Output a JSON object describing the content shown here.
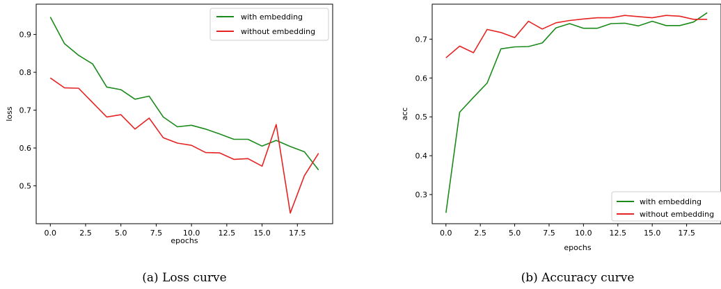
{
  "colors": {
    "with_embedding": "#1a8a1a",
    "without_embedding": "#e62222"
  },
  "chart_data": [
    {
      "type": "line",
      "caption": "(a)  Loss curve",
      "xlabel": "epochs",
      "ylabel": "loss",
      "xlim": [
        -1.0,
        20.0
      ],
      "ylim": [
        0.4,
        0.98
      ],
      "xticks": [
        0.0,
        2.5,
        5.0,
        7.5,
        10.0,
        12.5,
        15.0,
        17.5
      ],
      "yticks": [
        0.5,
        0.6,
        0.7,
        0.8,
        0.9
      ],
      "legend_position": "top-right",
      "grid": false,
      "x": [
        0,
        1,
        2,
        3,
        4,
        5,
        6,
        7,
        8,
        9,
        10,
        11,
        12,
        13,
        14,
        15,
        16,
        17,
        18,
        19
      ],
      "series": [
        {
          "name": "with embedding",
          "color": "#1a8a1a",
          "values": [
            0.946,
            0.876,
            0.845,
            0.822,
            0.761,
            0.754,
            0.729,
            0.737,
            0.682,
            0.656,
            0.66,
            0.65,
            0.637,
            0.623,
            0.623,
            0.605,
            0.62,
            0.604,
            0.59,
            0.542
          ]
        },
        {
          "name": "without embedding",
          "color": "#e62222",
          "values": [
            0.785,
            0.759,
            0.758,
            0.72,
            0.682,
            0.688,
            0.65,
            0.679,
            0.627,
            0.613,
            0.607,
            0.588,
            0.587,
            0.57,
            0.572,
            0.552,
            0.662,
            0.428,
            0.527,
            0.586
          ]
        }
      ]
    },
    {
      "type": "line",
      "caption": "(b)  Accuracy curve",
      "xlabel": "epochs",
      "ylabel": "acc",
      "xlim": [
        -1.0,
        20.0
      ],
      "ylim": [
        0.225,
        0.79
      ],
      "xticks": [
        0.0,
        2.5,
        5.0,
        7.5,
        10.0,
        12.5,
        15.0,
        17.5
      ],
      "yticks": [
        0.3,
        0.4,
        0.5,
        0.6,
        0.7
      ],
      "legend_position": "bottom-right",
      "grid": false,
      "x": [
        0,
        1,
        2,
        3,
        4,
        5,
        6,
        7,
        8,
        9,
        10,
        11,
        12,
        13,
        14,
        15,
        16,
        17,
        18,
        19
      ],
      "series": [
        {
          "name": "with embedding",
          "color": "#1a8a1a",
          "values": [
            0.253,
            0.512,
            0.55,
            0.587,
            0.675,
            0.68,
            0.681,
            0.69,
            0.729,
            0.74,
            0.728,
            0.728,
            0.74,
            0.741,
            0.734,
            0.746,
            0.735,
            0.735,
            0.744,
            0.768
          ]
        },
        {
          "name": "without embedding",
          "color": "#e62222",
          "values": [
            0.652,
            0.682,
            0.665,
            0.725,
            0.717,
            0.704,
            0.746,
            0.726,
            0.742,
            0.748,
            0.752,
            0.755,
            0.755,
            0.761,
            0.758,
            0.755,
            0.761,
            0.759,
            0.751,
            0.751
          ]
        }
      ]
    }
  ]
}
